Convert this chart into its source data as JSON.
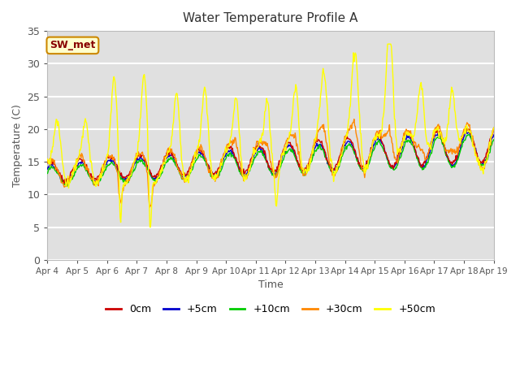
{
  "title": "Water Temperature Profile A",
  "xlabel": "Time",
  "ylabel": "Temperature (C)",
  "ylim": [
    0,
    35
  ],
  "yticks": [
    0,
    5,
    10,
    15,
    20,
    25,
    30,
    35
  ],
  "colors": {
    "0cm": "#cc0000",
    "+5cm": "#0000cc",
    "+10cm": "#00cc00",
    "+30cm": "#ff8800",
    "+50cm": "#ffff00"
  },
  "legend_labels": [
    "0cm",
    "+5cm",
    "+10cm",
    "+30cm",
    "+50cm"
  ],
  "annotation_text": "SW_met",
  "annotation_color": "#880000",
  "annotation_bg": "#ffffcc",
  "annotation_border": "#cc8800",
  "plot_bg": "#e0e0e0",
  "grid_color": "#ffffff",
  "x_labels": [
    "Apr 4",
    "Apr 5",
    "Apr 6",
    "Apr 7",
    "Apr 8",
    "Apr 9",
    "Apr 10",
    "Apr 11",
    "Apr 12",
    "Apr 13",
    "Apr 14",
    "Apr 15",
    "Apr 16",
    "Apr 17",
    "Apr 18",
    "Apr 19"
  ],
  "linewidth": 1.0,
  "n_days": 15,
  "points_per_day": 48
}
